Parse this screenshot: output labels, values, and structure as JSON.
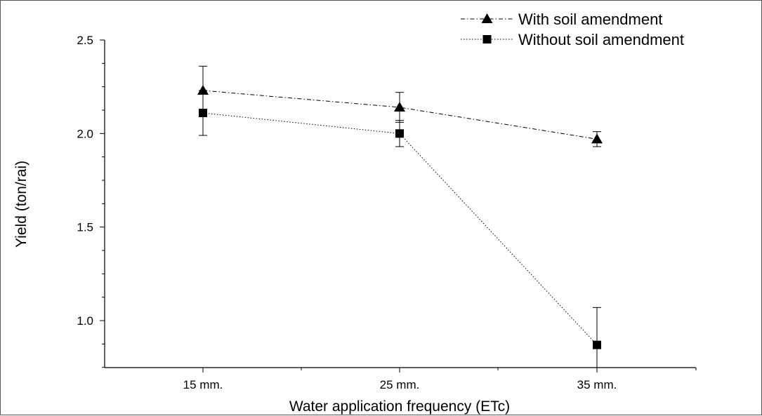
{
  "chart_data": {
    "type": "line",
    "title": "",
    "xlabel": "Water application frequency (ETc)",
    "ylabel": "Yield (ton/rai)",
    "categories": [
      "15 mm.",
      "25 mm.",
      "35 mm."
    ],
    "ylim": [
      0.75,
      2.5
    ],
    "yticks": [
      "1.0",
      "1.5",
      "2.0",
      "2.5"
    ],
    "grid": false,
    "legend_position": "top-right",
    "series": [
      {
        "name": "With soil amendment",
        "marker": "triangle",
        "line_style": "dash-dot",
        "values": [
          2.23,
          2.14,
          1.97
        ],
        "error": [
          0.13,
          0.08,
          0.04
        ]
      },
      {
        "name": "Without soil amendment",
        "marker": "square",
        "line_style": "dotted",
        "values": [
          2.11,
          2.0,
          0.87
        ],
        "error": [
          0.12,
          0.07,
          0.2
        ]
      }
    ],
    "colors": {
      "line": "#000000",
      "background": "#ffffff"
    }
  }
}
